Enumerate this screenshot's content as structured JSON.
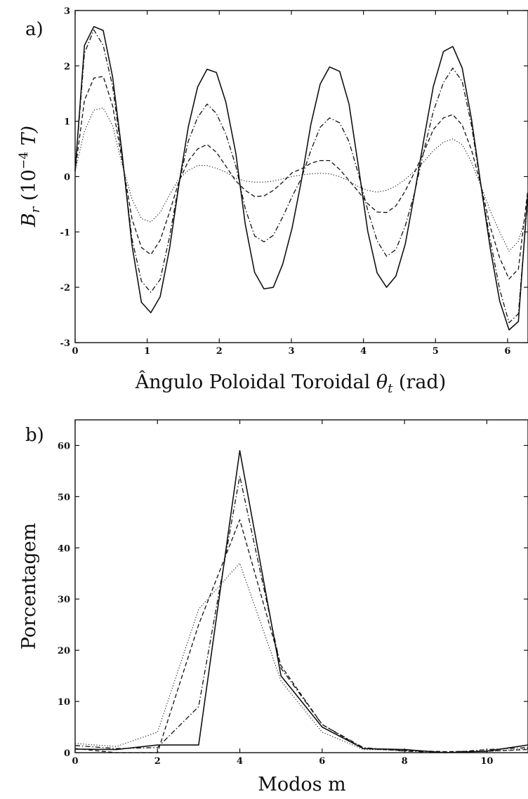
{
  "chart_data": [
    {
      "panel_label": "a)",
      "type": "line",
      "title": "",
      "xlabel": "Ângulo Poloidal Toroidal θ_t (rad)",
      "xlabel_parts": {
        "pre": "Ângulo Poloidal Toroidal ",
        "symbol": "θ",
        "sub": "t",
        "post": " (rad)"
      },
      "ylabel": "B_r (10^-4 T)",
      "ylabel_parts": {
        "symbol": "B",
        "sub": "r",
        "pre_unit": " (10",
        "sup": "−4",
        "unit": " T)"
      },
      "xlim": [
        0,
        6.283
      ],
      "ylim": [
        -3,
        3
      ],
      "xticks": [
        "0",
        "1",
        "2",
        "3",
        "4",
        "5",
        "6"
      ],
      "yticks": [
        "-3",
        "-2",
        "-1",
        "0",
        "1",
        "2",
        "3"
      ],
      "grid": false,
      "legend": "none",
      "x": [
        0.0,
        0.13,
        0.26,
        0.39,
        0.52,
        0.65,
        0.79,
        0.92,
        1.05,
        1.18,
        1.31,
        1.44,
        1.57,
        1.7,
        1.83,
        1.96,
        2.09,
        2.23,
        2.36,
        2.49,
        2.62,
        2.75,
        2.88,
        3.01,
        3.14,
        3.27,
        3.4,
        3.53,
        3.67,
        3.8,
        3.93,
        4.06,
        4.19,
        4.32,
        4.45,
        4.58,
        4.71,
        4.84,
        4.97,
        5.11,
        5.24,
        5.37,
        5.5,
        5.63,
        5.76,
        5.89,
        6.02,
        6.15,
        6.28
      ],
      "series": [
        {
          "style": "solid",
          "values": [
            0.1,
            2.37,
            2.71,
            2.64,
            1.8,
            0.44,
            -1.25,
            -2.27,
            -2.46,
            -2.17,
            -1.3,
            -0.15,
            0.9,
            1.62,
            1.94,
            1.88,
            1.35,
            0.42,
            -0.86,
            -1.73,
            -2.03,
            -2.0,
            -1.58,
            -0.93,
            -0.07,
            0.94,
            1.67,
            1.98,
            1.9,
            1.31,
            0.19,
            -0.99,
            -1.74,
            -2.0,
            -1.8,
            -1.22,
            -0.3,
            0.69,
            1.63,
            2.26,
            2.35,
            1.96,
            1.03,
            -0.16,
            -1.3,
            -2.25,
            -2.77,
            -2.62,
            -0.3
          ]
        },
        {
          "style": "dashdot",
          "values": [
            0.1,
            2.23,
            2.65,
            2.37,
            1.63,
            0.38,
            -1.13,
            -1.89,
            -2.09,
            -1.86,
            -1.09,
            -0.13,
            0.64,
            1.07,
            1.31,
            1.14,
            0.77,
            0.19,
            -0.58,
            -1.07,
            -1.18,
            -1.06,
            -0.73,
            -0.36,
            -0.03,
            0.47,
            0.89,
            1.06,
            0.97,
            0.63,
            0.05,
            -0.61,
            -1.16,
            -1.44,
            -1.32,
            -0.89,
            -0.29,
            0.48,
            1.18,
            1.7,
            1.96,
            1.72,
            0.92,
            -0.18,
            -1.15,
            -2.04,
            -2.64,
            -2.48,
            -0.38
          ]
        },
        {
          "style": "dashed",
          "values": [
            0.1,
            1.38,
            1.78,
            1.81,
            1.28,
            0.31,
            -0.77,
            -1.28,
            -1.41,
            -1.15,
            -0.64,
            -0.09,
            0.28,
            0.5,
            0.58,
            0.44,
            0.19,
            -0.08,
            -0.25,
            -0.36,
            -0.35,
            -0.25,
            -0.1,
            0.07,
            0.14,
            0.24,
            0.29,
            0.29,
            0.13,
            -0.07,
            -0.27,
            -0.49,
            -0.64,
            -0.65,
            -0.53,
            -0.26,
            0.08,
            0.45,
            0.85,
            1.06,
            1.12,
            0.93,
            0.48,
            -0.16,
            -0.91,
            -1.47,
            -1.85,
            -1.67,
            -0.25
          ]
        },
        {
          "style": "dotted",
          "values": [
            0.1,
            0.82,
            1.2,
            1.24,
            0.92,
            0.23,
            -0.41,
            -0.76,
            -0.82,
            -0.65,
            -0.33,
            -0.04,
            0.11,
            0.2,
            0.2,
            0.15,
            0.08,
            -0.03,
            -0.08,
            -0.1,
            -0.1,
            -0.08,
            -0.04,
            0.0,
            0.03,
            0.05,
            0.06,
            0.05,
            0.0,
            -0.08,
            -0.18,
            -0.25,
            -0.28,
            -0.25,
            -0.17,
            -0.05,
            0.1,
            0.27,
            0.47,
            0.62,
            0.68,
            0.58,
            0.26,
            -0.17,
            -0.62,
            -1.0,
            -1.35,
            -1.17,
            -0.6
          ]
        }
      ]
    },
    {
      "panel_label": "b)",
      "type": "line",
      "title": "",
      "xlabel": "Modos m",
      "ylabel": "Porcentagem",
      "xlim": [
        0,
        11
      ],
      "ylim": [
        0,
        65
      ],
      "xticks": [
        "0",
        "2",
        "4",
        "6",
        "8",
        "10"
      ],
      "yticks": [
        "0",
        "10",
        "20",
        "30",
        "40",
        "50",
        "60"
      ],
      "grid": false,
      "legend": "none",
      "x": [
        0,
        1,
        2,
        3,
        4,
        5,
        6,
        7,
        8,
        9,
        10,
        11
      ],
      "series": [
        {
          "style": "solid",
          "values": [
            0.7,
            0.6,
            1.5,
            1.5,
            59,
            15,
            5,
            0.8,
            0.6,
            0.0,
            0.3,
            1.5
          ]
        },
        {
          "style": "dashdot",
          "values": [
            1.4,
            0.8,
            1.0,
            9,
            54,
            16.5,
            5.5,
            1.0,
            0.3,
            0.0,
            0.6,
            1.0
          ]
        },
        {
          "style": "dashed",
          "values": [
            0.8,
            0.0,
            0.0,
            25,
            45.5,
            17,
            5.5,
            0.8,
            0.4,
            0.2,
            0.3,
            0.6
          ]
        },
        {
          "style": "dotted",
          "values": [
            1.8,
            1.2,
            4,
            28,
            37,
            14,
            4,
            0.6,
            0.5,
            0.1,
            0.2,
            0.8
          ]
        }
      ]
    }
  ]
}
